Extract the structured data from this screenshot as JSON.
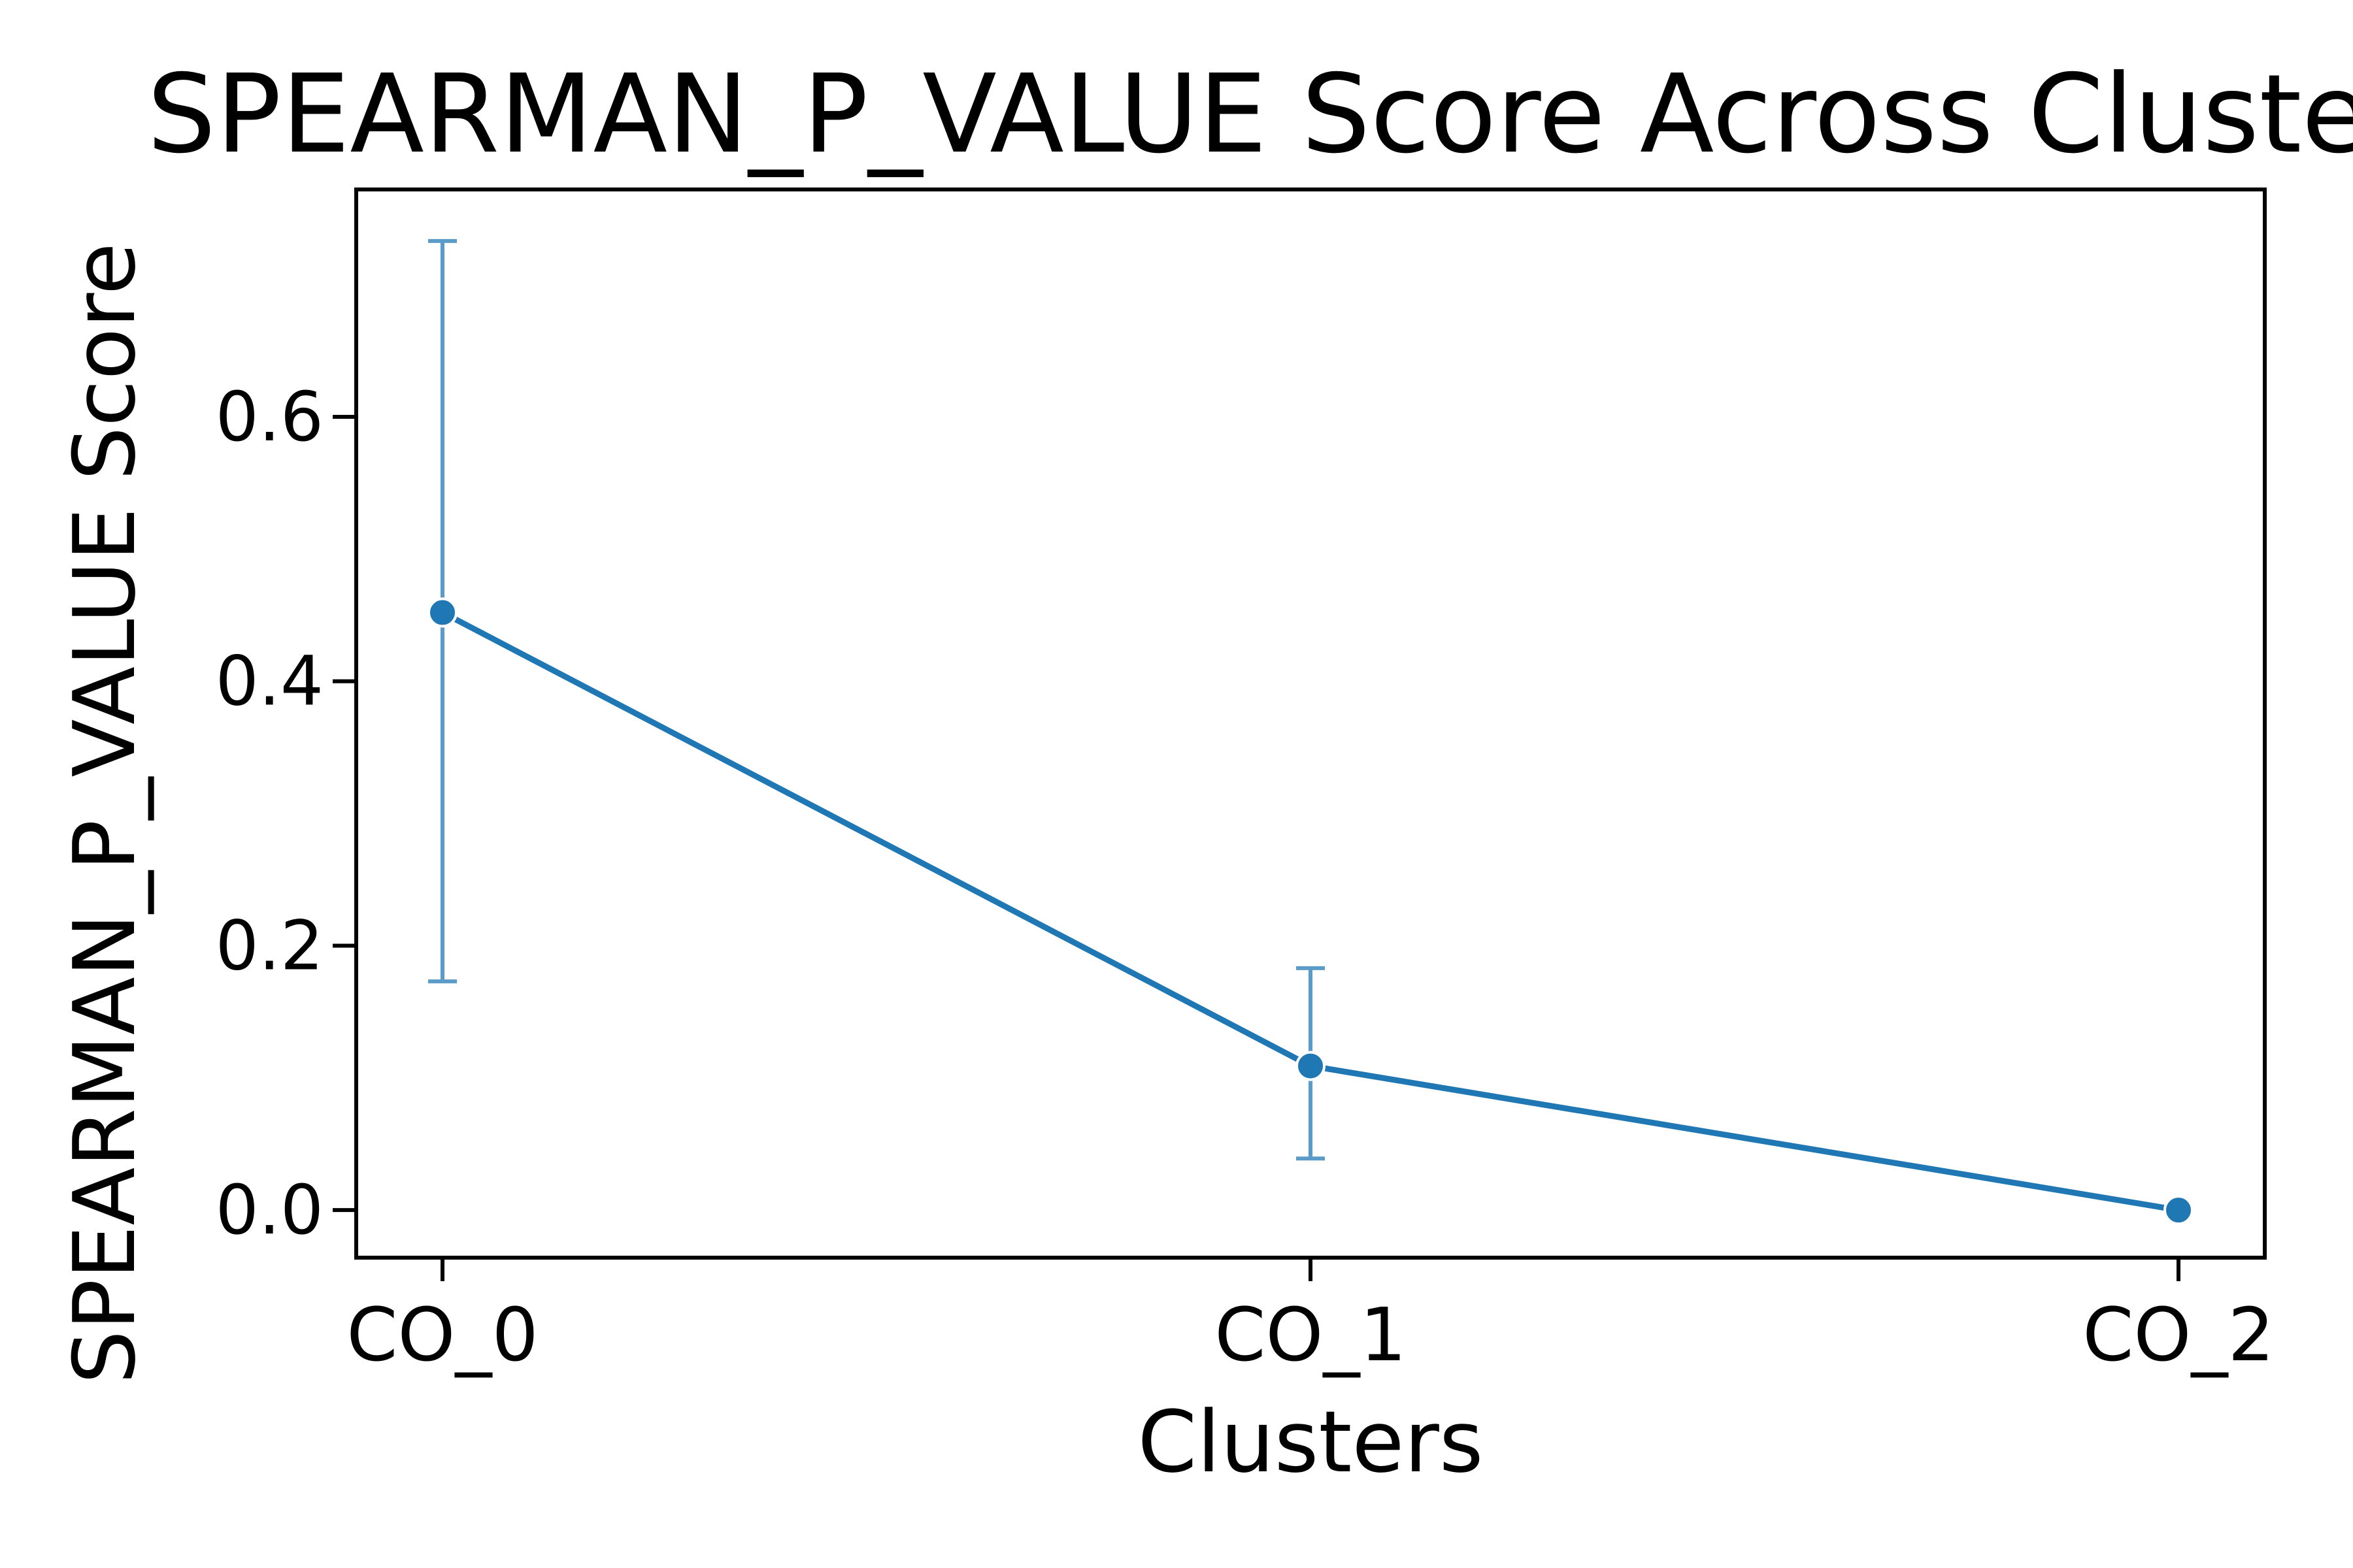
{
  "chart_data": {
    "type": "line",
    "title": "SPEARMAN_P_VALUE Score Across Clusters",
    "xlabel": "Clusters",
    "ylabel": "SPEARMAN_P_VALUE Score",
    "categories": [
      "CO_0",
      "CO_1",
      "CO_2"
    ],
    "series": [
      {
        "values": [
          0.452,
          0.109,
          0.0
        ],
        "error_low": [
          0.173,
          0.039,
          0.0
        ],
        "error_high": [
          0.733,
          0.183,
          0.0
        ]
      }
    ],
    "yticks": [
      0.0,
      0.2,
      0.4,
      0.6
    ],
    "ytick_labels": [
      "0.0",
      "0.2",
      "0.4",
      "0.6"
    ],
    "ylim": [
      -0.036,
      0.772
    ],
    "grid": false,
    "legend": "none",
    "colors": {
      "line": "#1f77b4",
      "errorbar": "#5b9bc8",
      "axes": "#000000"
    }
  }
}
